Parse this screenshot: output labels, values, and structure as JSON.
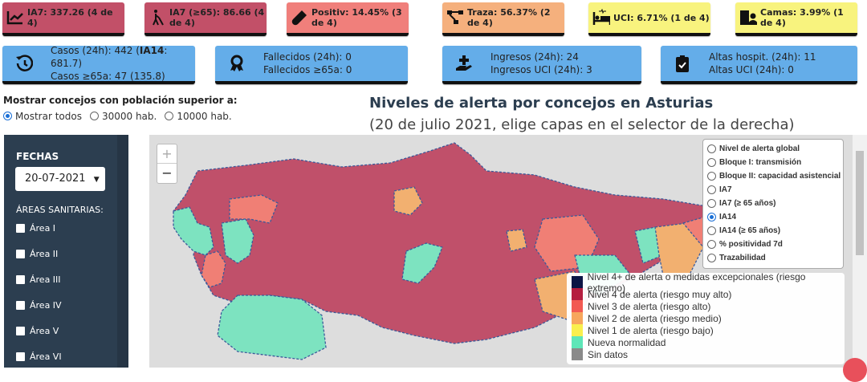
{
  "indicators": [
    {
      "icon": "chart-line-icon",
      "label": "IA7: 337.26 (4 de 4)",
      "color": "#c25068"
    },
    {
      "icon": "blind-person-icon",
      "label": "IA7 (≥65): 86.66 (4 de 4)",
      "color": "#c25068"
    },
    {
      "icon": "test-tube-icon",
      "label": "Positiv: 14.45% (3 de 4)",
      "color": "#f07f7b"
    },
    {
      "icon": "network-icon",
      "label": "Traza: 56.37% (2 de 4)",
      "color": "#f5b07d"
    },
    {
      "icon": "bed-icon",
      "label": "UCI: 6.71% (1 de 4)",
      "color": "#f8f37e"
    },
    {
      "icon": "hospital-user-icon",
      "label": "Camas: 3.99% (1 de 4)",
      "color": "#f8f37e"
    }
  ],
  "stats": [
    {
      "icon": "history-icon",
      "line1_pre": "Casos (24h): 442 (",
      "line1_bold": "IA14",
      "line1_post": ": 681.7)",
      "line2": "Casos ≥65a: 47 (135.8)"
    },
    {
      "icon": "ribbon-icon",
      "line1_pre": "Fallecidos (24h): 0",
      "line1_bold": "",
      "line1_post": "",
      "line2": "Fallecidos ≥65a: 0"
    },
    {
      "icon": "hand-medical-icon",
      "line1_pre": "Ingresos (24h): 24",
      "line1_bold": "",
      "line1_post": "",
      "line2": "Ingresos UCI (24h): 3"
    },
    {
      "icon": "clipboard-check-icon",
      "line1_pre": "Altas hospit. (24h): 11",
      "line1_bold": "",
      "line1_post": "",
      "line2": "Altas UCI (24h): 0"
    }
  ],
  "filter": {
    "title": "Mostrar concejos con población superior a:",
    "options": [
      "Mostrar todos",
      "30000 hab.",
      "10000 hab."
    ],
    "selected": "Mostrar todos"
  },
  "map_title": "Niveles de alerta por concejos en Asturias",
  "map_subtitle": "(20 de julio 2021, elige capas en el selector de la derecha)",
  "sidebar": {
    "fechas_label": "FECHAS",
    "date": "20-07-2021",
    "areas_label": "ÁREAS SANITARIAS:",
    "areas": [
      "Área I",
      "Área II",
      "Área III",
      "Área IV",
      "Área V",
      "Área VI"
    ]
  },
  "zoom": {
    "in": "+",
    "out": "−"
  },
  "layers": {
    "options": [
      "Nivel de alerta global",
      "Bloque I: transmisión",
      "Bloque II: capacidad asistencial",
      "IA7",
      "IA7 (≥ 65 años)",
      "IA14",
      "IA14 (≥ 65 años)",
      "% positividad 7d",
      "Trazabilidad"
    ],
    "selected": "IA14"
  },
  "legend": [
    {
      "label": "Nivel 4+ de alerta o medidas excepcionales (riesgo extremo)",
      "color": "#0b1545"
    },
    {
      "label": "Nivel 4 de alerta (riesgo muy alto)",
      "color": "#b51d3f"
    },
    {
      "label": "Nivel 3 de alerta (riesgo alto)",
      "color": "#f25a52"
    },
    {
      "label": "Nivel 2 de alerta (riesgo medio)",
      "color": "#f7a65c"
    },
    {
      "label": "Nivel 1 de alerta (riesgo bajo)",
      "color": "#f9ef4d"
    },
    {
      "label": "Nueva normalidad",
      "color": "#5ee6b8"
    },
    {
      "label": "Sin datos",
      "color": "#8a8a8a"
    }
  ]
}
